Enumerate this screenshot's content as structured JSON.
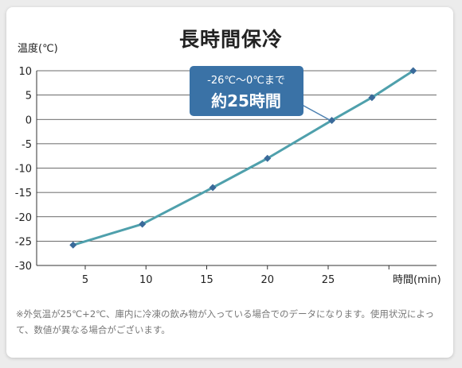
{
  "chart_data": {
    "type": "line",
    "title": "長時間保冷",
    "ylabel": "温度(℃)",
    "xlabel": "時間(min)",
    "ylim": [
      -30,
      10
    ],
    "xlim": [
      0,
      30
    ],
    "yticks": [
      10,
      5,
      0,
      -5,
      -10,
      -15,
      -20,
      -25,
      -30
    ],
    "xticks": [
      5,
      10,
      15,
      20,
      25
    ],
    "grid": true,
    "series": [
      {
        "x": [
          4,
          9.7,
          15.5,
          20,
          25.3,
          28.6,
          32
        ],
        "values": [
          -25.8,
          -21.5,
          -14,
          -8,
          -0.2,
          4.5,
          10
        ]
      }
    ],
    "annotation": {
      "line1": "-26℃〜0℃まで",
      "line2": "約25時間"
    },
    "note": "※外気温が25℃+2℃、庫内に冷凍の飲み物が入っている場合でのデータになります。使用状況によって、数値が異なる場合がございます。"
  },
  "colors": {
    "line": "#4fa0ac",
    "marker": "#3a6a9a",
    "callout": "#3a72a6"
  }
}
